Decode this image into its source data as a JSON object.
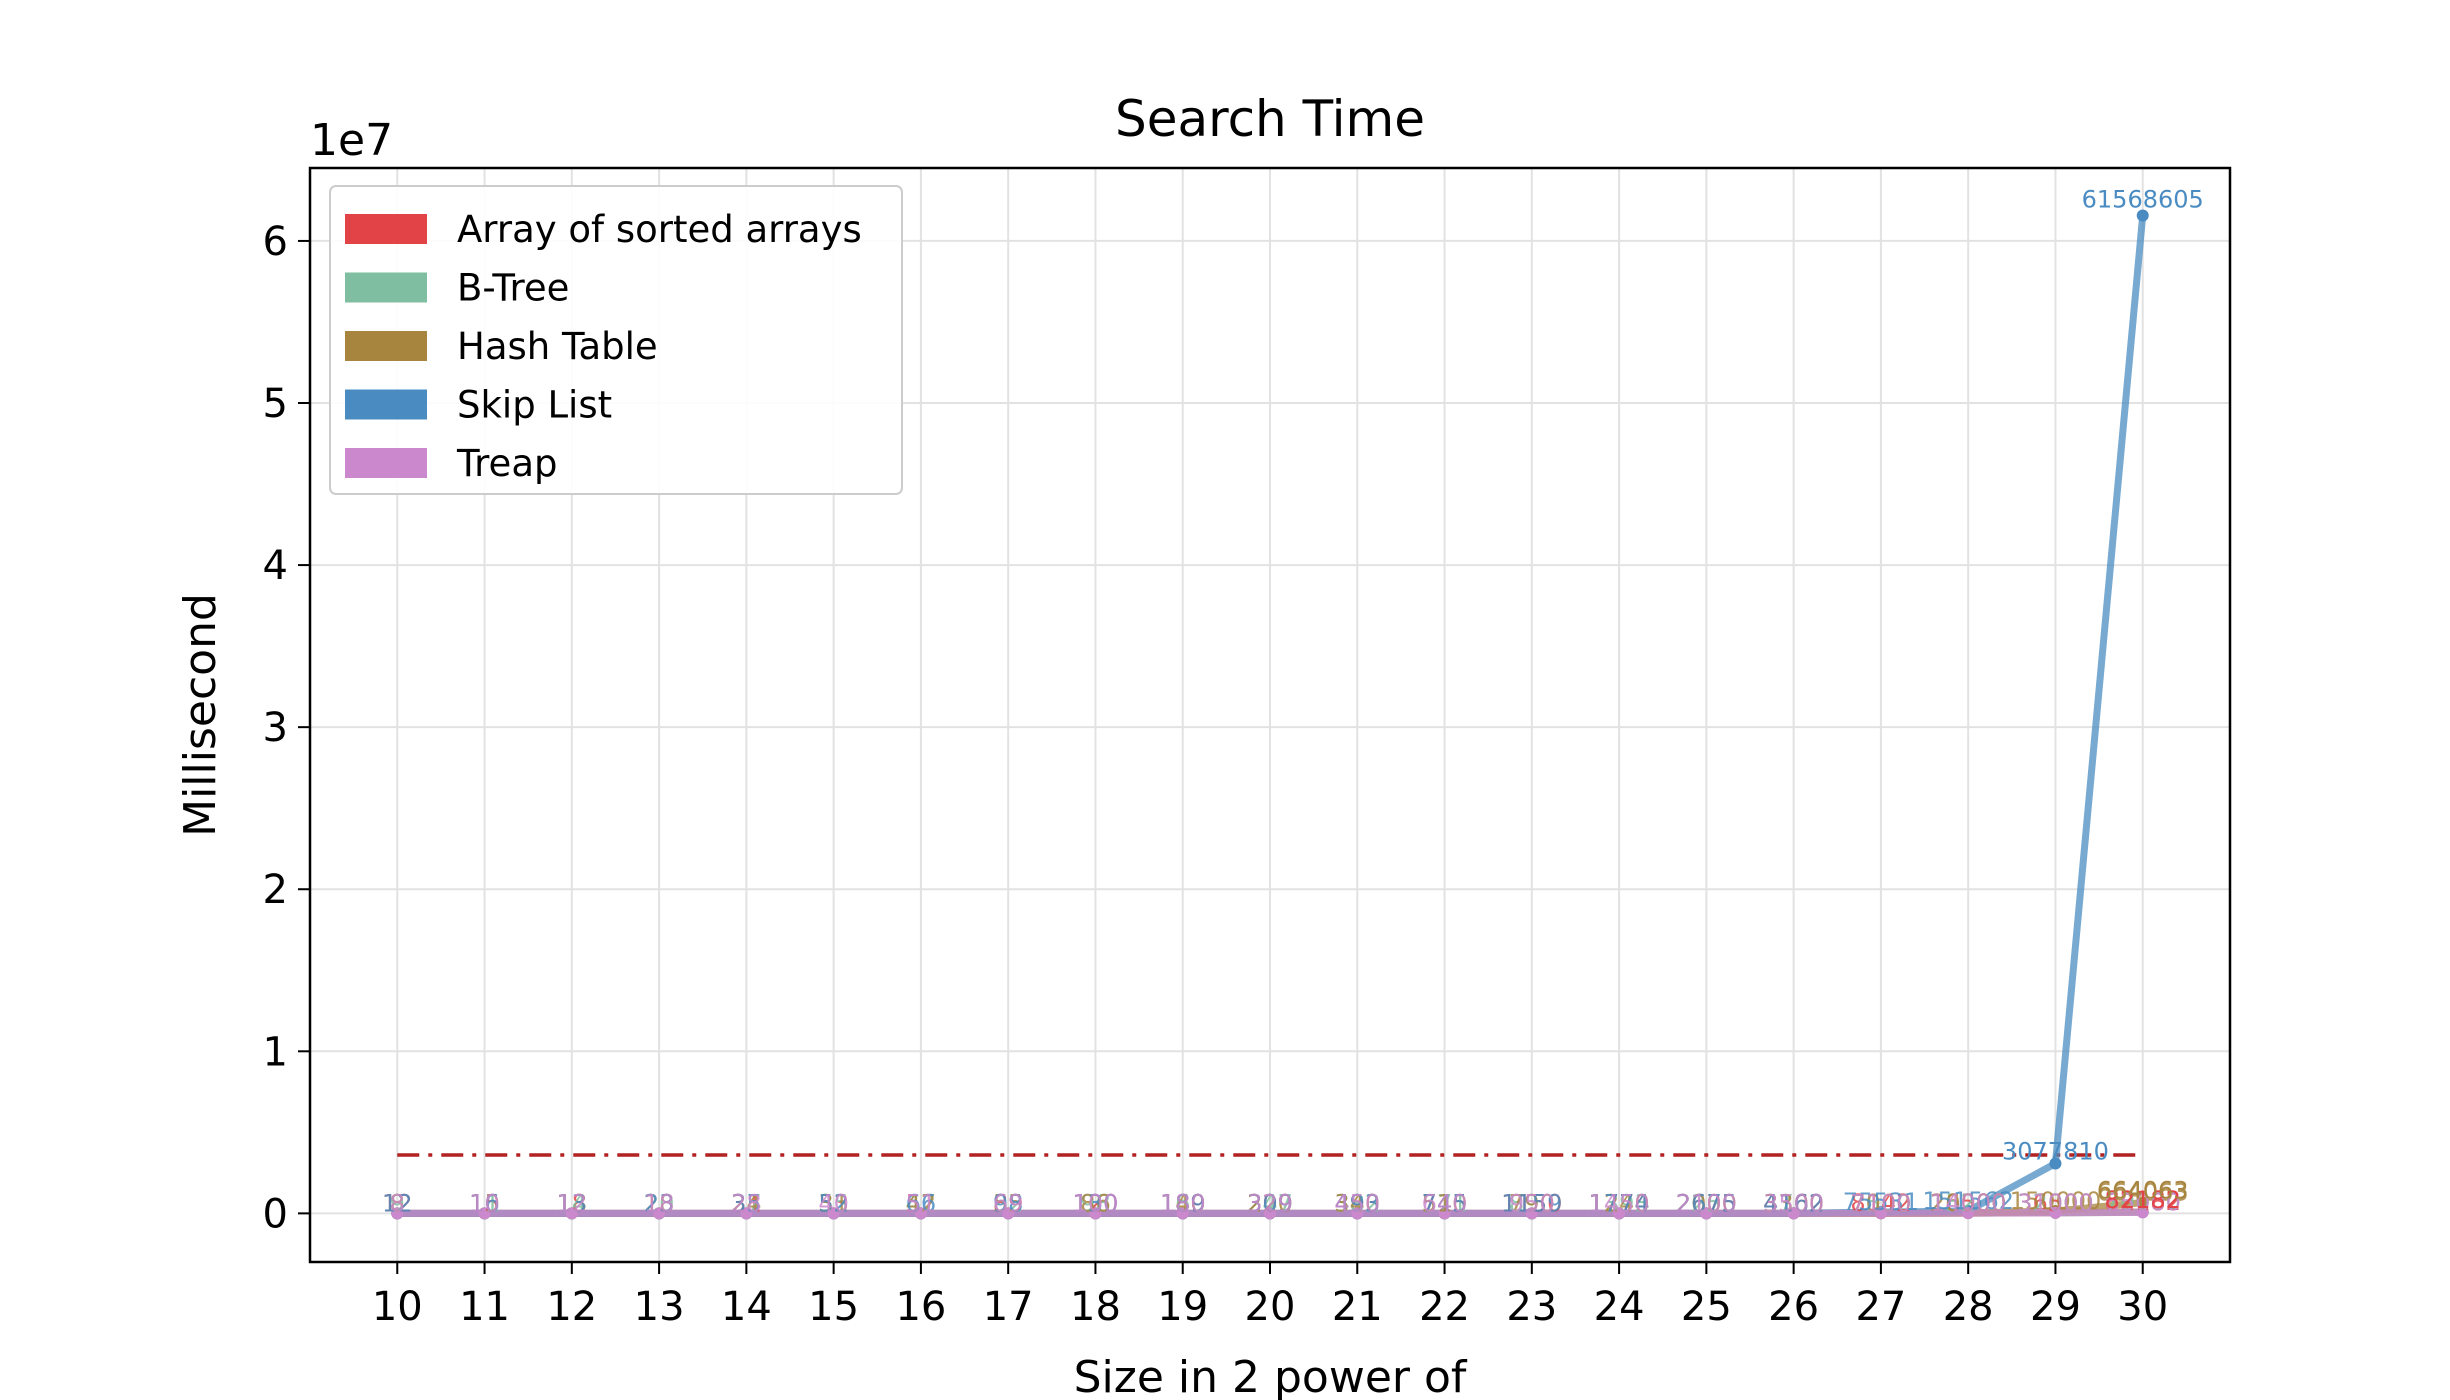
{
  "chart_data": {
    "type": "line",
    "title": "Search Time",
    "xlabel": "Size in 2 power of",
    "ylabel": "Millisecond",
    "y_offset_label": "1e7",
    "y_scale": 10000000,
    "x": [
      10,
      11,
      12,
      13,
      14,
      15,
      16,
      17,
      18,
      19,
      20,
      21,
      22,
      23,
      24,
      25,
      26,
      27,
      28,
      29,
      30
    ],
    "x_ticks": [
      "10",
      "11",
      "12",
      "13",
      "14",
      "15",
      "16",
      "17",
      "18",
      "19",
      "20",
      "21",
      "22",
      "23",
      "24",
      "25",
      "26",
      "27",
      "28",
      "29",
      "30"
    ],
    "y_ticks": [
      "0",
      "1",
      "2",
      "3",
      "4",
      "5",
      "6"
    ],
    "xlim": [
      9,
      31.0
    ],
    "ylim": [
      -3000000,
      64500000
    ],
    "grid": true,
    "legend_position": "top-left",
    "series": [
      {
        "name": "Array of sorted arrays",
        "color": "#e24346",
        "values": [
          12,
          15,
          18,
          23,
          31,
          53,
          57,
          89,
          120,
          189,
          309,
          493,
          745,
          1150,
          1774,
          2675,
          4162,
          8142,
          16500,
          36500,
          82182
        ]
      },
      {
        "name": "B-Tree",
        "color": "#7fbea1",
        "values": [
          9,
          11,
          14,
          20,
          27,
          35,
          47,
          62,
          98,
          160,
          247,
          382,
          571,
          890,
          1393,
          2250,
          3700,
          7500,
          15200,
          32000,
          70000
        ]
      },
      {
        "name": "Hash Table",
        "color": "#a8853f",
        "values": [
          8,
          10,
          13,
          18,
          24,
          31,
          42,
          55,
          86,
          140,
          220,
          340,
          510,
          790,
          1240,
          2000,
          3300,
          7000,
          20000,
          150000,
          664063
        ]
      },
      {
        "name": "Skip List",
        "color": "#4a8cc2",
        "values": [
          12,
          16,
          13,
          23,
          35,
          52,
          66,
          98,
          130,
          189,
          309,
          493,
          745,
          1159,
          1774,
          2675,
          4162,
          75531,
          151562,
          3077810,
          61568605
        ]
      },
      {
        "name": "Treap",
        "color": "#cc88cc",
        "values": [
          8,
          10,
          12,
          18,
          28,
          40,
          51,
          69,
          100,
          180,
          329,
          450,
          640,
          950,
          1450,
          2100,
          3500,
          7100,
          14000,
          31000,
          65000
        ]
      }
    ],
    "point_labels": [
      {
        "series": "Array of sorted arrays",
        "x": 30,
        "text": "82182"
      },
      {
        "series": "Hash Table",
        "x": 30,
        "text": "664063"
      },
      {
        "series": "Skip List",
        "x": 29,
        "text": "3077810"
      },
      {
        "series": "Skip List",
        "x": 30,
        "text": "61568605"
      }
    ],
    "reference_line": {
      "color": "#b22222",
      "style": "dash-dot",
      "value": 3600000
    }
  }
}
